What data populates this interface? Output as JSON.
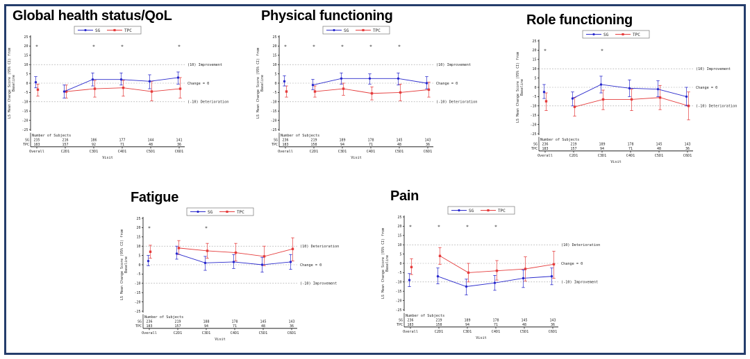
{
  "figure": {
    "border_color": "#243d6b",
    "background": "#ffffff"
  },
  "shared": {
    "ylabel_line1": "LS Mean Change Score (95% CI) from",
    "ylabel_line2": "Baseline",
    "xlabel": "Visit",
    "subjects_header": "Number of Subjects",
    "visits": [
      "Overall",
      "C2D1",
      "C3D1",
      "C4D1",
      "C5D1",
      "C6D1"
    ],
    "yticks": [
      25,
      20,
      15,
      10,
      5,
      0,
      -5,
      -10,
      -15,
      -20,
      -25
    ],
    "legend": [
      "SG",
      "TPC"
    ],
    "series_colors": {
      "SG": "#2828cc",
      "TPC": "#e53b3b"
    },
    "asterisk_char": "*"
  },
  "chart_data": [
    {
      "type": "line",
      "title": "Global health status/QoL",
      "ylim": [
        -25,
        25
      ],
      "ref_lines": [
        {
          "y": 10,
          "label": "(10) Improvement"
        },
        {
          "y": 0,
          "label": "Change = 0"
        },
        {
          "y": -10,
          "label": "(-10) Deterioration"
        }
      ],
      "asterisk_visits": [
        0,
        2,
        3,
        5
      ],
      "series": [
        {
          "name": "SG",
          "marker": "circle",
          "values": [
            0.5,
            -4.5,
            2,
            2,
            1,
            3
          ],
          "ci_low": [
            -2.5,
            -8,
            -1.5,
            -1,
            -3,
            -0.5
          ],
          "ci_high": [
            3.5,
            -1,
            5.5,
            5.5,
            4.5,
            6
          ]
        },
        {
          "name": "TPC",
          "marker": "square",
          "values": [
            -3.5,
            -4.5,
            -3,
            -2.5,
            -4.5,
            -3
          ],
          "ci_low": [
            -7,
            -8,
            -7.5,
            -7,
            -9.5,
            -8
          ],
          "ci_high": [
            -0.5,
            -1,
            1.5,
            1.5,
            1,
            3
          ]
        }
      ],
      "subjects": [
        {
          "label": "SG",
          "counts": [
            235,
            216,
            186,
            177,
            144,
            141
          ]
        },
        {
          "label": "TPC",
          "counts": [
            183,
            157,
            92,
            71,
            48,
            36
          ]
        }
      ]
    },
    {
      "type": "line",
      "title": "Physical functioning",
      "ylim": [
        -25,
        25
      ],
      "ref_lines": [
        {
          "y": 10,
          "label": "(10) Improvement"
        },
        {
          "y": 0,
          "label": "Change = 0"
        },
        {
          "y": -10,
          "label": "(-10) Deterioration"
        }
      ],
      "asterisk_visits": [
        0,
        1,
        2,
        3,
        4
      ],
      "series": [
        {
          "name": "SG",
          "marker": "circle",
          "values": [
            1,
            -1,
            2.5,
            2.5,
            2.5,
            0
          ],
          "ci_low": [
            -1.5,
            -3.5,
            -0.5,
            -0.5,
            -1,
            -3
          ],
          "ci_high": [
            4,
            2,
            5.5,
            5,
            5.5,
            3.5
          ]
        },
        {
          "name": "TPC",
          "marker": "square",
          "values": [
            -4.5,
            -4.5,
            -3,
            -5.5,
            -5,
            -3.5
          ],
          "ci_low": [
            -7.5,
            -7.5,
            -6.5,
            -9,
            -9.5,
            -7.5
          ],
          "ci_high": [
            -1.5,
            -1.5,
            0,
            -2,
            -0.5,
            0.5
          ]
        }
      ],
      "subjects": [
        {
          "label": "SG",
          "counts": [
            236,
            219,
            189,
            178,
            145,
            143
          ]
        },
        {
          "label": "TPC",
          "counts": [
            183,
            158,
            94,
            71,
            48,
            36
          ]
        }
      ]
    },
    {
      "type": "line",
      "title": "Role functioning",
      "ylim": [
        -25,
        25
      ],
      "ref_lines": [
        {
          "y": 10,
          "label": "(10) Improvement"
        },
        {
          "y": 0,
          "label": "Change = 0"
        },
        {
          "y": -10,
          "label": "(-10) Deterioration"
        }
      ],
      "asterisk_visits": [
        0,
        2
      ],
      "series": [
        {
          "name": "SG",
          "marker": "circle",
          "values": [
            -2.5,
            -6,
            1.5,
            -0.5,
            -1,
            -5
          ],
          "ci_low": [
            -6,
            -10,
            -3,
            -5,
            -5,
            -10
          ],
          "ci_high": [
            1.5,
            -2.5,
            6,
            4,
            3.5,
            0
          ]
        },
        {
          "name": "TPC",
          "marker": "square",
          "values": [
            -7.5,
            -10.5,
            -6.5,
            -6.5,
            -5.5,
            -10
          ],
          "ci_low": [
            -12.5,
            -15.5,
            -12,
            -12.5,
            -12,
            -17.5
          ],
          "ci_high": [
            -3,
            -5.5,
            -1.5,
            -1,
            1,
            -2.5
          ]
        }
      ],
      "subjects": [
        {
          "label": "SG",
          "counts": [
            236,
            219,
            189,
            178,
            145,
            143
          ]
        },
        {
          "label": "TPC",
          "counts": [
            183,
            157,
            94,
            71,
            48,
            36
          ]
        }
      ]
    },
    {
      "type": "line",
      "title": "Fatigue",
      "ylim": [
        -25,
        25
      ],
      "ref_lines": [
        {
          "y": 10,
          "label": "(10) Deterioration"
        },
        {
          "y": 0,
          "label": "Change = 0"
        },
        {
          "y": -10,
          "label": "(-10) Improvement"
        }
      ],
      "asterisk_visits": [
        0,
        2
      ],
      "series": [
        {
          "name": "SG",
          "marker": "circle",
          "values": [
            2,
            6,
            1,
            1.5,
            0,
            1.5
          ],
          "ci_low": [
            -0.5,
            3,
            -3,
            -2,
            -4,
            -2.5
          ],
          "ci_high": [
            5,
            10,
            4.5,
            5.5,
            4,
            5.5
          ]
        },
        {
          "name": "TPC",
          "marker": "square",
          "values": [
            7,
            9,
            7.5,
            6.5,
            4.5,
            8.5
          ],
          "ci_low": [
            3.5,
            5.5,
            3.5,
            2,
            -0.5,
            2
          ],
          "ci_high": [
            10.5,
            13,
            11.5,
            11.5,
            10,
            14.5
          ]
        }
      ],
      "subjects": [
        {
          "label": "SG",
          "counts": [
            236,
            219,
            188,
            178,
            145,
            143
          ]
        },
        {
          "label": "TPC",
          "counts": [
            183,
            157,
            94,
            71,
            48,
            36
          ]
        }
      ]
    },
    {
      "type": "line",
      "title": "Pain",
      "ylim": [
        -25,
        25
      ],
      "ref_lines": [
        {
          "y": 10,
          "label": "(10) Deterioration"
        },
        {
          "y": 0,
          "label": "Change = 0"
        },
        {
          "y": -10,
          "label": "(-10) Improvement"
        }
      ],
      "asterisk_visits": [
        0,
        1,
        2,
        3
      ],
      "series": [
        {
          "name": "SG",
          "marker": "circle",
          "values": [
            -9,
            -7,
            -12.5,
            -10.5,
            -8,
            -7
          ],
          "ci_low": [
            -12.5,
            -11,
            -17,
            -14.5,
            -13,
            -11.5
          ],
          "ci_high": [
            -5.5,
            -2.5,
            -8.5,
            -6.5,
            -3.5,
            -2.5
          ]
        },
        {
          "name": "TPC",
          "marker": "square",
          "values": [
            -2,
            4,
            -5,
            -4,
            -3,
            -0.5
          ],
          "ci_low": [
            -6,
            -0.5,
            -10,
            -9,
            -9.5,
            -8
          ],
          "ci_high": [
            2.5,
            8.5,
            0,
            1.5,
            3.5,
            6.5
          ]
        }
      ],
      "subjects": [
        {
          "label": "SG",
          "counts": [
            236,
            219,
            189,
            178,
            145,
            143
          ]
        },
        {
          "label": "TPC",
          "counts": [
            183,
            158,
            94,
            71,
            48,
            36
          ]
        }
      ]
    }
  ]
}
